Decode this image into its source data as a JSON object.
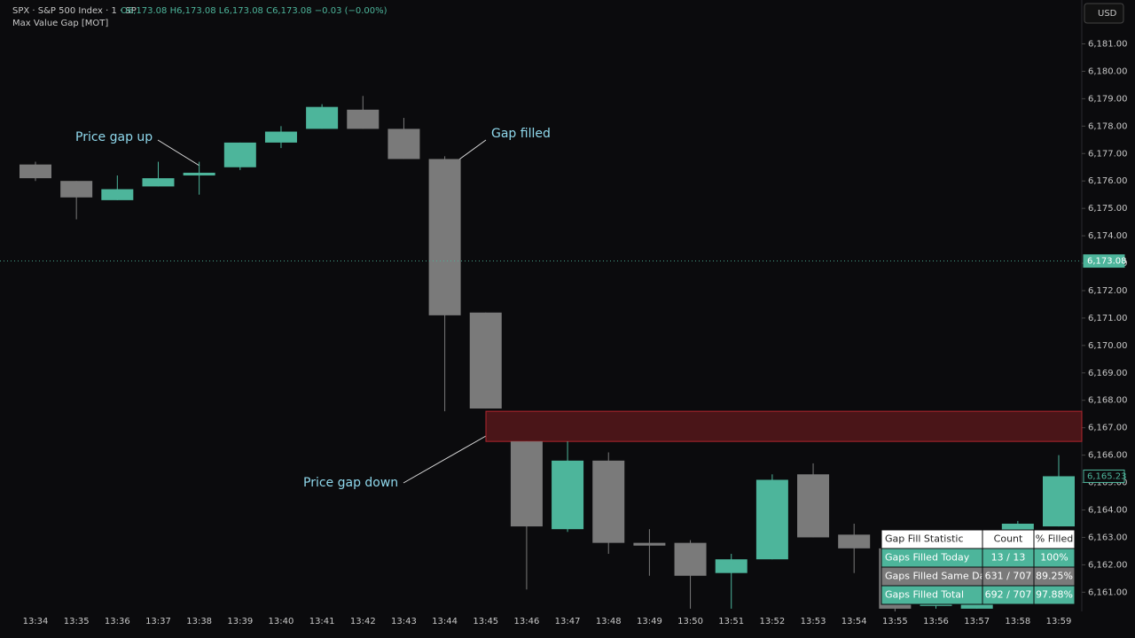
{
  "chart_data": {
    "type": "candlestick",
    "title": "SPX · S&P 500 Index · 1 · SP",
    "quote": "O6,173.08 H6,173.08 L6,173.08 C6,173.08 −0.03 (−0.00%)",
    "subtitle": "Max Value Gap [MOT]",
    "currency": "USD",
    "categories": [
      "13:34",
      "13:35",
      "13:36",
      "13:37",
      "13:38",
      "13:39",
      "13:40",
      "13:41",
      "13:42",
      "13:43",
      "13:44",
      "13:45",
      "13:46",
      "13:47",
      "13:48",
      "13:49",
      "13:50",
      "13:51",
      "13:52",
      "13:53",
      "13:54",
      "13:55",
      "13:56",
      "13:57",
      "13:58",
      "13:59"
    ],
    "open": [
      6176.6,
      6176.0,
      6175.3,
      6175.8,
      6176.2,
      6176.5,
      6177.4,
      6177.9,
      6178.6,
      6177.9,
      6176.8,
      6171.2,
      6166.5,
      6163.3,
      6165.8,
      6162.8,
      6162.8,
      6161.7,
      6162.2,
      6165.3,
      6163.1,
      6162.6,
      6160.5,
      6160.4,
      6163.0,
      6163.4
    ],
    "high": [
      6176.7,
      6176.0,
      6176.2,
      6176.7,
      6176.7,
      6177.4,
      6178.0,
      6178.8,
      6179.1,
      6178.3,
      6176.9,
      6171.2,
      6166.5,
      6166.5,
      6166.1,
      6163.3,
      6162.9,
      6162.4,
      6165.3,
      6165.7,
      6163.5,
      6163.0,
      6161.6,
      6162.6,
      6163.6,
      6166.0
    ],
    "low": [
      6176.0,
      6174.6,
      6175.3,
      6175.8,
      6175.5,
      6176.4,
      6177.2,
      6177.9,
      6177.9,
      6176.8,
      6167.6,
      6167.7,
      6161.1,
      6163.2,
      6162.4,
      6161.6,
      6160.4,
      6160.4,
      6162.2,
      6163.0,
      6161.7,
      6160.3,
      6160.4,
      6160.4,
      6162.9,
      6163.4
    ],
    "close": [
      6176.1,
      6175.4,
      6175.7,
      6176.1,
      6176.3,
      6177.4,
      6177.8,
      6178.7,
      6177.9,
      6176.8,
      6171.1,
      6167.7,
      6163.4,
      6165.8,
      6162.8,
      6162.7,
      6161.6,
      6162.2,
      6165.1,
      6163.0,
      6162.6,
      6160.4,
      6161.5,
      6162.5,
      6163.5,
      6165.23
    ],
    "up_color": "#4db59b",
    "down_color": "#7a7a7a",
    "ylim": [
      6160.3,
      6182.6
    ],
    "yticks": [
      {
        "value": 6161,
        "label": "6,161.00"
      },
      {
        "value": 6162,
        "label": "6,162.00"
      },
      {
        "value": 6163,
        "label": "6,163.00"
      },
      {
        "value": 6164,
        "label": "6,164.00"
      },
      {
        "value": 6165,
        "label": "6,165.00"
      },
      {
        "value": 6166,
        "label": "6,166.00"
      },
      {
        "value": 6167,
        "label": "6,167.00"
      },
      {
        "value": 6168,
        "label": "6,168.00"
      },
      {
        "value": 6169,
        "label": "6,169.00"
      },
      {
        "value": 6170,
        "label": "6,170.00"
      },
      {
        "value": 6171,
        "label": "6,171.00"
      },
      {
        "value": 6172,
        "label": "6,172.00"
      },
      {
        "value": 6173,
        "label": "6,173.00"
      },
      {
        "value": 6174,
        "label": "6,174.00"
      },
      {
        "value": 6175,
        "label": "6,175.00"
      },
      {
        "value": 6176,
        "label": "6,176.00"
      },
      {
        "value": 6177,
        "label": "6,177.00"
      },
      {
        "value": 6178,
        "label": "6,178.00"
      },
      {
        "value": 6179,
        "label": "6,179.00"
      },
      {
        "value": 6180,
        "label": "6,180.00"
      },
      {
        "value": 6181,
        "label": "6,181.00"
      }
    ],
    "price_labels": [
      {
        "value": 6173.08,
        "label": "6,173.08"
      },
      {
        "value": 6165.23,
        "label": "6,165.23"
      }
    ],
    "zones": [
      {
        "low": 6166.5,
        "high": 6167.6
      }
    ],
    "annotations": [
      "Price gap up",
      "Gap filled",
      "Price gap down"
    ],
    "table": {
      "header": [
        "Gap Fill Statistic",
        "Count",
        "% Filled"
      ],
      "rows": [
        [
          "Gaps Filled Today",
          "13 / 13",
          "100%"
        ],
        [
          "Gaps Filled Same Day",
          "631 / 707",
          "89.25%"
        ],
        [
          "Gaps Filled Total",
          "692 / 707",
          "97.88%"
        ]
      ]
    }
  }
}
